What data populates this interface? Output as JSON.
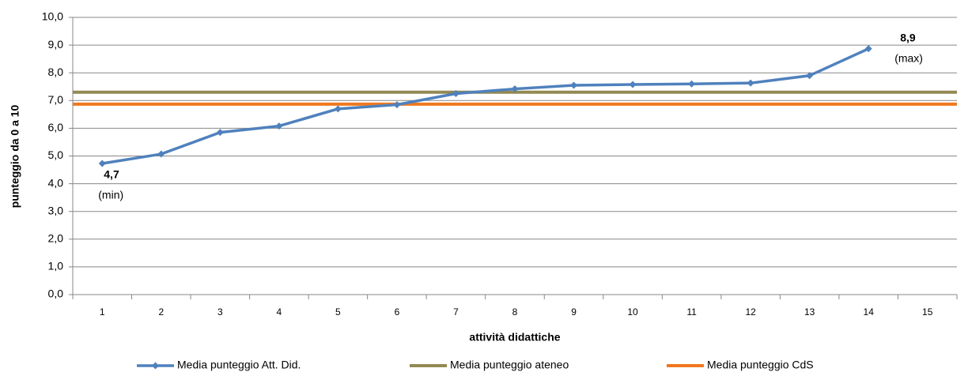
{
  "chart_data": {
    "type": "line",
    "xlabel": "attività didattiche",
    "ylabel": "punteggio da 0 a 10",
    "categories": [
      "1",
      "2",
      "3",
      "4",
      "5",
      "6",
      "7",
      "8",
      "9",
      "10",
      "11",
      "12",
      "13",
      "14",
      "15"
    ],
    "series": [
      {
        "name": "Media punteggio Att. Did.",
        "color": "#4f81bd",
        "values": [
          4.73,
          5.07,
          5.85,
          6.08,
          6.7,
          6.85,
          7.25,
          7.42,
          7.55,
          7.58,
          7.6,
          7.63,
          7.9,
          8.87,
          null
        ],
        "value_labels": [
          "4,7",
          null,
          null,
          null,
          null,
          null,
          null,
          null,
          null,
          null,
          null,
          null,
          null,
          "8,9",
          null
        ]
      }
    ],
    "reference_lines": [
      {
        "name": "Media punteggio ateneo",
        "color": "#938953",
        "value": 7.3
      },
      {
        "name": "Media punteggio CdS",
        "color": "#f0781e",
        "value": 6.87
      }
    ],
    "annotations": [
      "(min)",
      "(max)"
    ],
    "ylim": [
      0,
      10
    ],
    "yticks": [
      {
        "value": 0,
        "label": "0,0"
      },
      {
        "value": 1,
        "label": "1,0"
      },
      {
        "value": 2,
        "label": "2,0"
      },
      {
        "value": 3,
        "label": "3,0"
      },
      {
        "value": 4,
        "label": "4,0"
      },
      {
        "value": 5,
        "label": "5,0"
      },
      {
        "value": 6,
        "label": "6,0"
      },
      {
        "value": 7,
        "label": "7,0"
      },
      {
        "value": 8,
        "label": "8,0"
      },
      {
        "value": 9,
        "label": "9,0"
      },
      {
        "value": 10,
        "label": "10,0"
      }
    ],
    "grid": true,
    "legend": "bottom"
  }
}
